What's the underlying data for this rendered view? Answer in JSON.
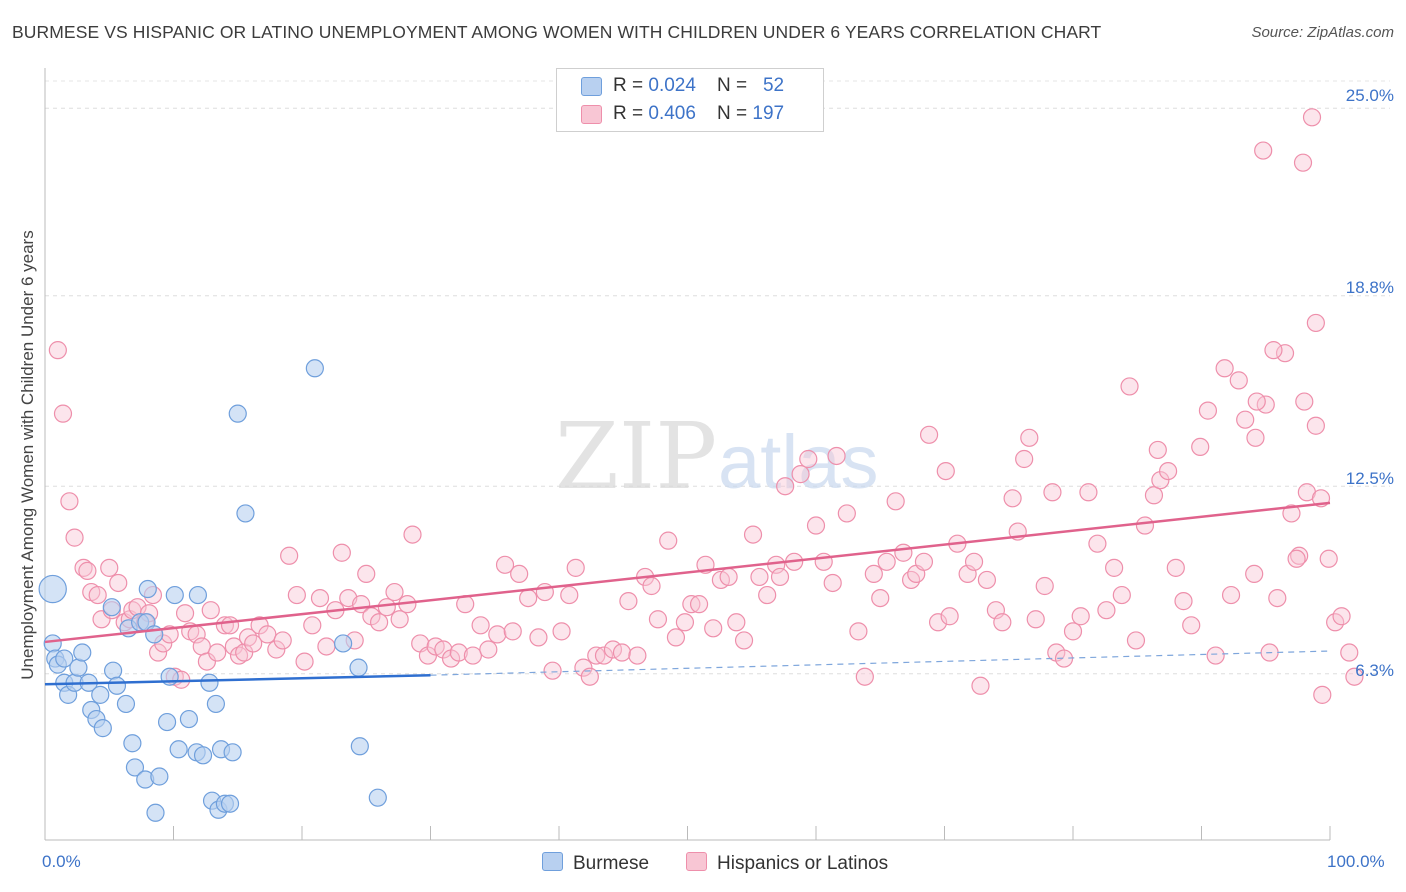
{
  "title": "BURMESE VS HISPANIC OR LATINO UNEMPLOYMENT AMONG WOMEN WITH CHILDREN UNDER 6 YEARS CORRELATION CHART",
  "source": "Source: ZipAtlas.com",
  "watermark": "ZIPatlas",
  "legend": {
    "burmese": {
      "r_label": "R = ",
      "r_value": "0.024",
      "n_label": "N = ",
      "n_value": "52"
    },
    "hispanic": {
      "r_label": "R = ",
      "r_value": "0.406",
      "n_label": "N = ",
      "n_value": "197"
    }
  },
  "colors": {
    "burmese_fill": "#b8d0f0",
    "burmese_stroke": "#6f9fdc",
    "burmese_line": "#2f6fd0",
    "hispanic_fill": "#f8c6d4",
    "hispanic_stroke": "#ee8fab",
    "hispanic_line": "#e0628c",
    "tick_text": "#3d73c8"
  },
  "chart_data": {
    "type": "scatter",
    "title": "BURMESE VS HISPANIC OR LATINO UNEMPLOYMENT AMONG WOMEN WITH CHILDREN UNDER 6 YEARS CORRELATION CHART",
    "xlabel": "",
    "ylabel": "Unemployment Among Women with Children Under 6 years",
    "x_tick_labels": [
      "0.0%",
      "100.0%"
    ],
    "y_tick_labels": [
      "6.3%",
      "12.5%",
      "18.8%",
      "25.0%"
    ],
    "y_ticks": [
      6.3,
      12.5,
      18.8,
      25.0
    ],
    "xlim": [
      0,
      100
    ],
    "ylim": [
      0.8,
      26.0
    ],
    "grid": "horizontal dashed",
    "legend_position": "top-center",
    "series": [
      {
        "name": "Burmese",
        "trend": {
          "x0": 0,
          "y0": 5.95,
          "x1": 30,
          "y1": 6.25,
          "dashed_to_x": 100,
          "dashed_to_y": 7.05
        },
        "points": [
          [
            0.6,
            9.1,
            1.6
          ],
          [
            0.6,
            7.3,
            1
          ],
          [
            0.8,
            6.8,
            1
          ],
          [
            1.0,
            6.6,
            1
          ],
          [
            1.5,
            6.8,
            1
          ],
          [
            1.5,
            6.0,
            1
          ],
          [
            1.8,
            5.6,
            1
          ],
          [
            2.3,
            6.0,
            1
          ],
          [
            2.6,
            6.5,
            1
          ],
          [
            2.9,
            7.0,
            1
          ],
          [
            3.4,
            6.0,
            1
          ],
          [
            3.6,
            5.1,
            1
          ],
          [
            4.0,
            4.8,
            1
          ],
          [
            4.3,
            5.6,
            1
          ],
          [
            4.5,
            4.5,
            1
          ],
          [
            5.2,
            8.5,
            1
          ],
          [
            5.3,
            6.4,
            1
          ],
          [
            5.6,
            5.9,
            1
          ],
          [
            6.3,
            5.3,
            1
          ],
          [
            6.5,
            7.8,
            1
          ],
          [
            6.8,
            4.0,
            1
          ],
          [
            7.0,
            3.2,
            1
          ],
          [
            7.4,
            8.0,
            1
          ],
          [
            7.8,
            2.8,
            1
          ],
          [
            7.9,
            8.0,
            1
          ],
          [
            8.0,
            9.1,
            1
          ],
          [
            8.5,
            7.6,
            1
          ],
          [
            8.6,
            1.7,
            1
          ],
          [
            8.9,
            2.9,
            1
          ],
          [
            9.5,
            4.7,
            1
          ],
          [
            9.7,
            6.2,
            1
          ],
          [
            10.1,
            8.9,
            1
          ],
          [
            10.4,
            3.8,
            1
          ],
          [
            11.2,
            4.8,
            1
          ],
          [
            11.8,
            3.7,
            1
          ],
          [
            11.9,
            8.9,
            1
          ],
          [
            12.3,
            3.6,
            1
          ],
          [
            12.8,
            6.0,
            1
          ],
          [
            13.0,
            2.1,
            1
          ],
          [
            13.3,
            5.3,
            1
          ],
          [
            13.5,
            1.8,
            1
          ],
          [
            13.7,
            3.8,
            1
          ],
          [
            14.0,
            2.0,
            1
          ],
          [
            14.4,
            2.0,
            1
          ],
          [
            14.6,
            3.7,
            1
          ],
          [
            15.0,
            14.9,
            1
          ],
          [
            15.6,
            11.6,
            1
          ],
          [
            21.0,
            16.4,
            1
          ],
          [
            23.2,
            7.3,
            1
          ],
          [
            24.4,
            6.5,
            1
          ],
          [
            24.5,
            3.9,
            1
          ],
          [
            25.9,
            2.2,
            1
          ]
        ]
      },
      {
        "name": "Hispanics or Latinos",
        "trend": {
          "x0": 0,
          "y0": 7.35,
          "x1": 100,
          "y1": 11.95
        },
        "points": [
          [
            1.0,
            17.0
          ],
          [
            1.4,
            14.9
          ],
          [
            1.9,
            12.0
          ],
          [
            2.3,
            10.8
          ],
          [
            3.0,
            9.8
          ],
          [
            3.3,
            9.7
          ],
          [
            3.6,
            9.0
          ],
          [
            4.1,
            8.9
          ],
          [
            4.4,
            8.1
          ],
          [
            5.0,
            9.8
          ],
          [
            5.2,
            8.4
          ],
          [
            5.7,
            9.3
          ],
          [
            6.2,
            8.0
          ],
          [
            6.6,
            8.1
          ],
          [
            6.8,
            8.4
          ],
          [
            7.2,
            8.5
          ],
          [
            7.8,
            8.0
          ],
          [
            8.1,
            8.3
          ],
          [
            8.4,
            8.9
          ],
          [
            8.8,
            7.0
          ],
          [
            9.2,
            7.3
          ],
          [
            9.7,
            7.6
          ],
          [
            10.1,
            6.2
          ],
          [
            10.6,
            6.1
          ],
          [
            10.9,
            8.3
          ],
          [
            11.3,
            7.7
          ],
          [
            11.8,
            7.6
          ],
          [
            12.2,
            7.2
          ],
          [
            12.6,
            6.7
          ],
          [
            12.9,
            8.4
          ],
          [
            13.4,
            7.0
          ],
          [
            14.0,
            7.9
          ],
          [
            14.4,
            7.9
          ],
          [
            14.7,
            7.2
          ],
          [
            15.1,
            6.9
          ],
          [
            15.5,
            7.0
          ],
          [
            15.8,
            7.5
          ],
          [
            16.2,
            7.3
          ],
          [
            16.7,
            7.9
          ],
          [
            17.3,
            7.6
          ],
          [
            18.0,
            7.1
          ],
          [
            18.5,
            7.4
          ],
          [
            19.0,
            10.2
          ],
          [
            19.6,
            8.9
          ],
          [
            20.2,
            6.7
          ],
          [
            20.8,
            7.9
          ],
          [
            21.4,
            8.8
          ],
          [
            21.9,
            7.2
          ],
          [
            22.6,
            8.4
          ],
          [
            23.1,
            10.3
          ],
          [
            23.6,
            8.8
          ],
          [
            24.1,
            7.4
          ],
          [
            24.6,
            8.6
          ],
          [
            25.0,
            9.6
          ],
          [
            25.4,
            8.2
          ],
          [
            26.0,
            8.0
          ],
          [
            26.6,
            8.5
          ],
          [
            27.2,
            9.0
          ],
          [
            27.6,
            8.1
          ],
          [
            28.2,
            8.6
          ],
          [
            28.6,
            10.9
          ],
          [
            29.2,
            7.3
          ],
          [
            29.8,
            6.9
          ],
          [
            30.4,
            7.2
          ],
          [
            31.0,
            7.1
          ],
          [
            31.6,
            6.8
          ],
          [
            32.2,
            7.0
          ],
          [
            32.7,
            8.6
          ],
          [
            33.3,
            6.9
          ],
          [
            33.9,
            7.9
          ],
          [
            34.5,
            7.1
          ],
          [
            35.2,
            7.6
          ],
          [
            35.8,
            9.9
          ],
          [
            36.4,
            7.7
          ],
          [
            36.9,
            9.6
          ],
          [
            37.6,
            8.8
          ],
          [
            38.4,
            7.5
          ],
          [
            38.9,
            9.0
          ],
          [
            39.5,
            6.4
          ],
          [
            40.2,
            7.7
          ],
          [
            40.8,
            8.9
          ],
          [
            41.3,
            9.8
          ],
          [
            41.9,
            6.5
          ],
          [
            42.4,
            6.2
          ],
          [
            42.9,
            6.9
          ],
          [
            43.5,
            6.9
          ],
          [
            44.2,
            7.1
          ],
          [
            44.9,
            7.0
          ],
          [
            45.4,
            8.7
          ],
          [
            46.1,
            6.9
          ],
          [
            46.7,
            9.5
          ],
          [
            47.2,
            9.2
          ],
          [
            47.7,
            8.1
          ],
          [
            48.5,
            10.7
          ],
          [
            49.1,
            7.5
          ],
          [
            49.8,
            8.0
          ],
          [
            50.3,
            8.6
          ],
          [
            50.9,
            8.6
          ],
          [
            51.4,
            9.9
          ],
          [
            52.0,
            7.8
          ],
          [
            52.6,
            9.4
          ],
          [
            53.2,
            9.5
          ],
          [
            53.8,
            8.0
          ],
          [
            54.4,
            7.4
          ],
          [
            55.1,
            10.9
          ],
          [
            55.6,
            9.5
          ],
          [
            56.2,
            8.9
          ],
          [
            56.9,
            9.9
          ],
          [
            57.2,
            9.5
          ],
          [
            57.6,
            12.5
          ],
          [
            58.3,
            10.0
          ],
          [
            58.8,
            12.9
          ],
          [
            59.4,
            13.4
          ],
          [
            60.0,
            11.2
          ],
          [
            60.6,
            10.0
          ],
          [
            61.3,
            9.3
          ],
          [
            61.6,
            13.5
          ],
          [
            62.4,
            11.6
          ],
          [
            63.3,
            7.7
          ],
          [
            63.8,
            6.2
          ],
          [
            64.5,
            9.6
          ],
          [
            65.0,
            8.8
          ],
          [
            65.5,
            10.0
          ],
          [
            66.2,
            12.0
          ],
          [
            66.8,
            10.3
          ],
          [
            67.4,
            9.4
          ],
          [
            67.8,
            9.6
          ],
          [
            68.4,
            10.0
          ],
          [
            68.8,
            14.2
          ],
          [
            69.5,
            8.0
          ],
          [
            70.1,
            13.0
          ],
          [
            70.4,
            8.2
          ],
          [
            71.0,
            10.6
          ],
          [
            71.8,
            9.6
          ],
          [
            72.3,
            10.0
          ],
          [
            72.8,
            5.9
          ],
          [
            73.3,
            9.4
          ],
          [
            74.0,
            8.4
          ],
          [
            74.5,
            8.0
          ],
          [
            75.3,
            12.1
          ],
          [
            75.7,
            11.0
          ],
          [
            76.2,
            13.4
          ],
          [
            76.6,
            14.1
          ],
          [
            77.1,
            8.1
          ],
          [
            77.8,
            9.2
          ],
          [
            78.4,
            12.3
          ],
          [
            78.7,
            7.0
          ],
          [
            79.3,
            6.8
          ],
          [
            80.0,
            7.7
          ],
          [
            80.6,
            8.2
          ],
          [
            81.2,
            12.3
          ],
          [
            81.9,
            10.6
          ],
          [
            82.6,
            8.4
          ],
          [
            83.2,
            9.8
          ],
          [
            83.8,
            8.9
          ],
          [
            84.4,
            15.8
          ],
          [
            84.9,
            7.4
          ],
          [
            85.6,
            11.2
          ],
          [
            86.3,
            12.2
          ],
          [
            86.8,
            12.7
          ],
          [
            87.4,
            13.0
          ],
          [
            88.0,
            9.8
          ],
          [
            88.6,
            8.7
          ],
          [
            89.2,
            7.9
          ],
          [
            89.9,
            13.8
          ],
          [
            90.5,
            15.0
          ],
          [
            91.1,
            6.9
          ],
          [
            91.8,
            16.4
          ],
          [
            92.3,
            8.9
          ],
          [
            92.9,
            16.0
          ],
          [
            93.4,
            14.7
          ],
          [
            94.1,
            9.6
          ],
          [
            94.8,
            23.6
          ],
          [
            95.3,
            7.0
          ],
          [
            95.9,
            8.8
          ],
          [
            96.5,
            16.9
          ],
          [
            97.0,
            11.6
          ],
          [
            97.6,
            10.2
          ],
          [
            98.2,
            12.3
          ],
          [
            98.9,
            14.5
          ],
          [
            99.4,
            5.6
          ],
          [
            99.9,
            10.1
          ],
          [
            100.4,
            8.0
          ],
          [
            100.9,
            8.2
          ],
          [
            101.5,
            7.0
          ],
          [
            101.9,
            6.2
          ],
          [
            99.3,
            12.1
          ],
          [
            97.4,
            10.1
          ],
          [
            95.6,
            17.0
          ],
          [
            95.0,
            15.2
          ],
          [
            94.2,
            14.1
          ],
          [
            97.9,
            23.2
          ],
          [
            98.6,
            24.7
          ],
          [
            98.9,
            17.9
          ],
          [
            98.0,
            15.3
          ],
          [
            94.3,
            15.3
          ],
          [
            86.6,
            13.7
          ]
        ]
      }
    ]
  },
  "x_labels": {
    "left": "0.0%",
    "right": "100.0%"
  },
  "bottom_legend": {
    "burmese": "Burmese",
    "hispanic": "Hispanics or Latinos"
  }
}
